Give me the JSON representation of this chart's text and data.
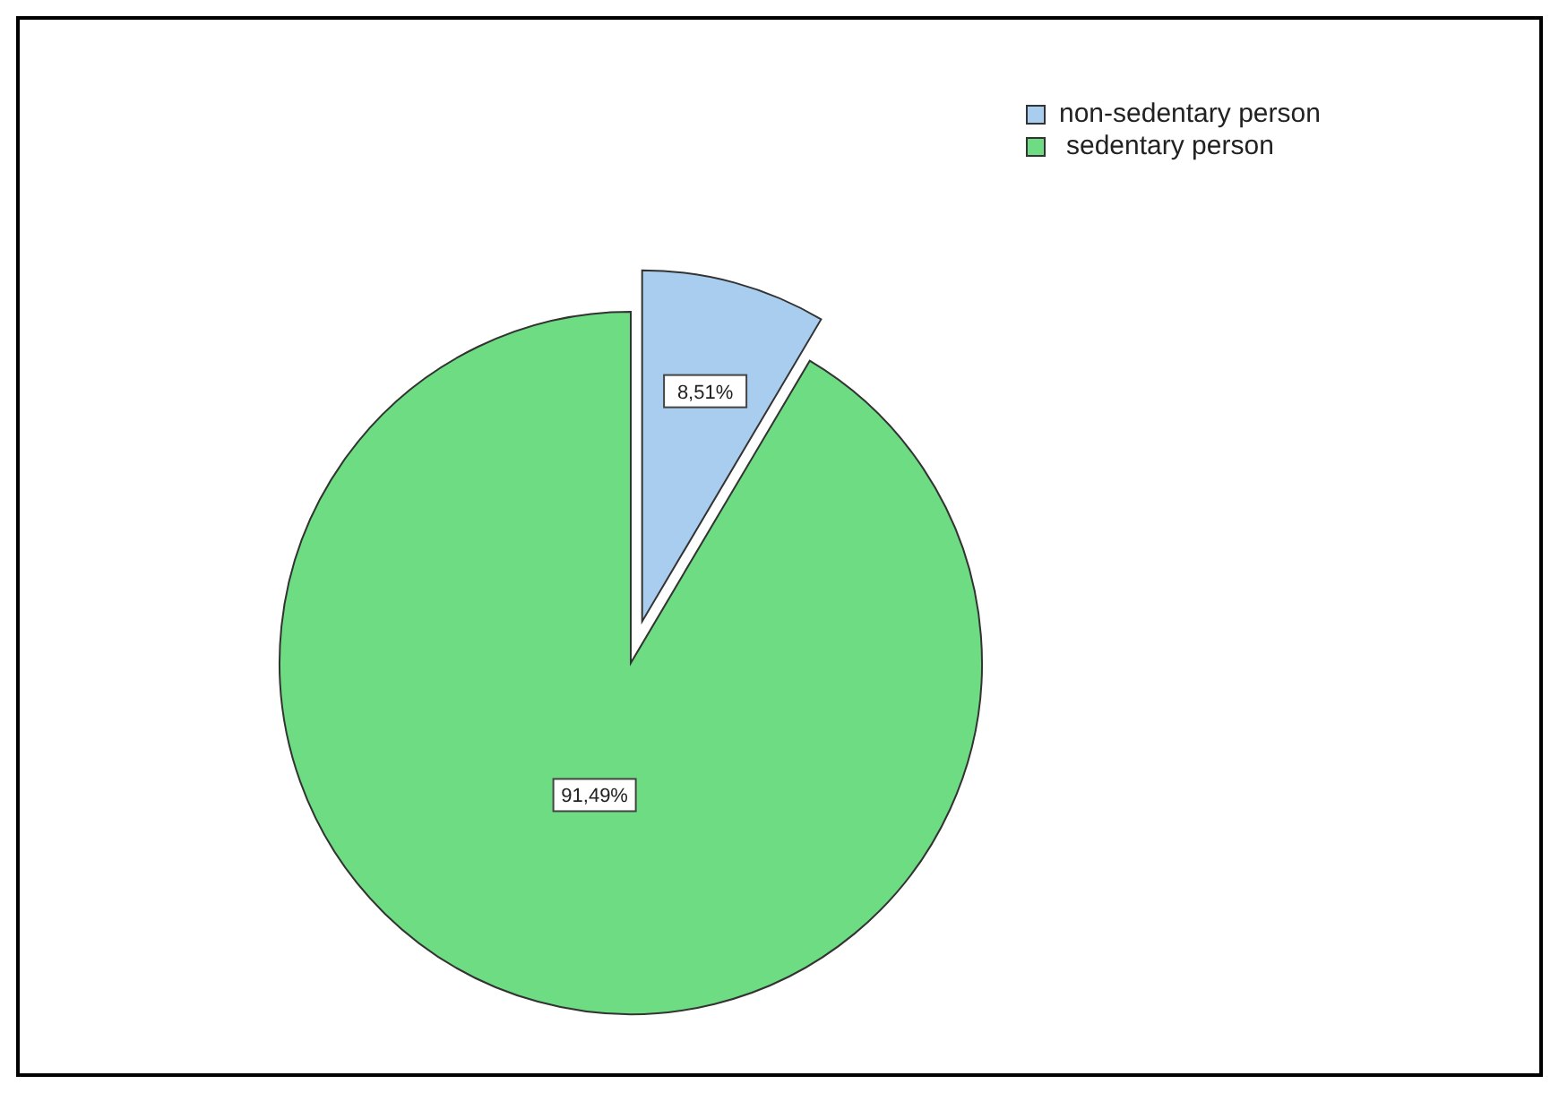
{
  "chart_data": {
    "type": "pie",
    "categories": [
      "non-sedentary person",
      "sedentary person"
    ],
    "values": [
      8.51,
      91.49
    ],
    "colors": [
      "#a9cdee",
      "#6ddc82"
    ],
    "value_labels": [
      "8,51%",
      "91,49%"
    ],
    "legend": "top right"
  }
}
